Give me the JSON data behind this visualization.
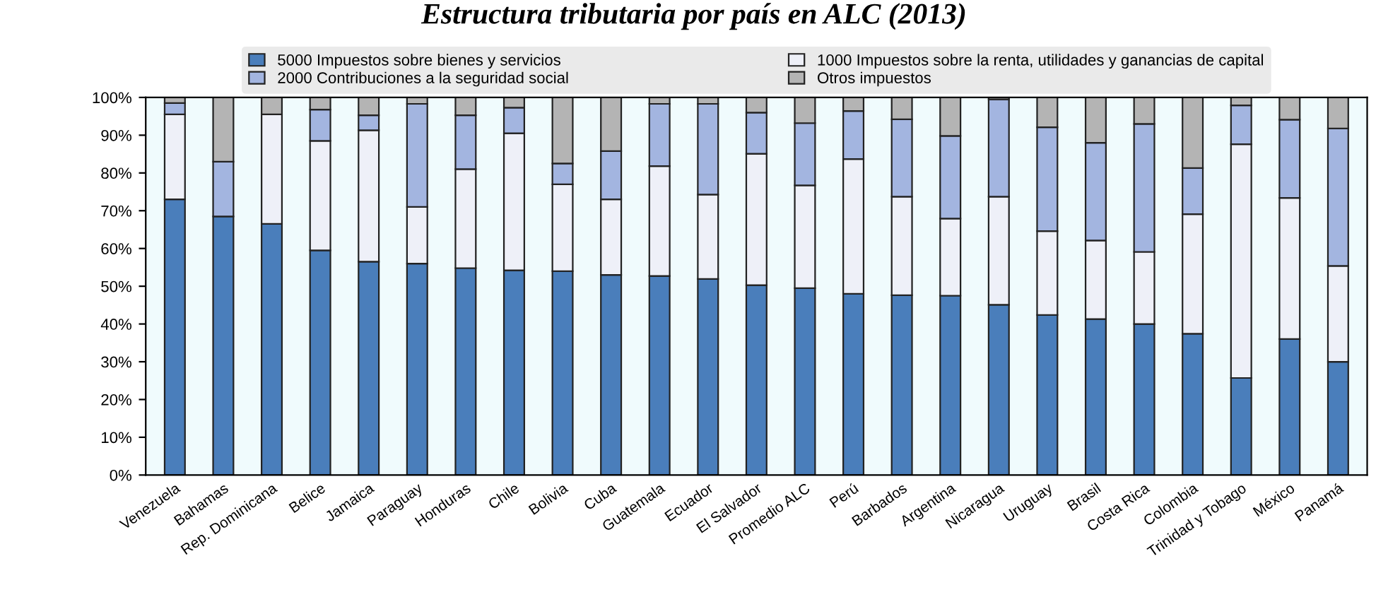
{
  "chart_data": {
    "type": "bar",
    "title": "Estructura tributaria por país en ALC (2013)",
    "categories": [
      "Venezuela",
      "Bahamas",
      "Rep. Dominicana",
      "Belice",
      "Jamaica",
      "Paraguay",
      "Honduras",
      "Chile",
      "Bolivia",
      "Cuba",
      "Guatemala",
      "Ecuador",
      "El Salvador",
      "Promedio ALC",
      "Perú",
      "Barbados",
      "Argentina",
      "Nicaragua",
      "Uruguay",
      "Brasil",
      "Costa Rica",
      "Colombia",
      "Trinidad y Tobago",
      "México",
      "Panamá"
    ],
    "stacked": true,
    "ylim": [
      0,
      100
    ],
    "yticks": [
      {
        "value": 0,
        "label": "0%"
      },
      {
        "value": 10,
        "label": "10%"
      },
      {
        "value": 20,
        "label": "20%"
      },
      {
        "value": 30,
        "label": "30%"
      },
      {
        "value": 40,
        "label": "40%"
      },
      {
        "value": 50,
        "label": "50%"
      },
      {
        "value": 60,
        "label": "60%"
      },
      {
        "value": 70,
        "label": "70%"
      },
      {
        "value": 80,
        "label": "80%"
      },
      {
        "value": 90,
        "label": "90%"
      },
      {
        "value": 100,
        "label": "100%"
      }
    ],
    "grid": false,
    "legend": "top",
    "series": [
      {
        "name": "5000 Impuestos sobre bienes y servicios",
        "color": "#4a7ebb",
        "values": [
          73,
          68.5,
          66.5,
          59.5,
          56.5,
          56,
          54.8,
          54.2,
          54,
          53,
          52.7,
          51.9,
          50.3,
          49.5,
          48,
          47.6,
          47.5,
          45.1,
          42.4,
          41.3,
          40,
          37.4,
          25.7,
          36,
          30
        ]
      },
      {
        "name": "1000 Impuestos sobre la renta, utilidades y ganancias de capital",
        "color": "#eef0f8",
        "values": [
          22.5,
          0,
          29,
          29,
          34.8,
          15,
          26.2,
          36.3,
          23,
          20,
          29.1,
          22.4,
          34.8,
          27.2,
          35.7,
          26.1,
          20.4,
          28.6,
          22.2,
          20.8,
          19.1,
          31.7,
          61.9,
          37.4,
          25.4
        ]
      },
      {
        "name": "2000 Contribuciones a la seguridad social",
        "color": "#a3b5e0",
        "values": [
          3,
          14.5,
          null,
          8.3,
          4,
          27.3,
          14.3,
          6.8,
          5.5,
          12.8,
          16.5,
          24,
          10.9,
          16.5,
          12.7,
          20.5,
          21.9,
          25.8,
          27.5,
          25.9,
          33.9,
          12.2,
          10.3,
          20.7,
          36.4
        ]
      },
      {
        "name": "Otros impuestos",
        "color": "#b4b4b4",
        "values": [
          1.5,
          17,
          4.5,
          3.2,
          4.7,
          1.7,
          4.7,
          2.7,
          17.5,
          14.2,
          1.7,
          1.7,
          4,
          6.8,
          3.6,
          5.8,
          10.2,
          0.5,
          7.9,
          12,
          7,
          18.7,
          2.1,
          5.9,
          8.2
        ]
      }
    ]
  }
}
